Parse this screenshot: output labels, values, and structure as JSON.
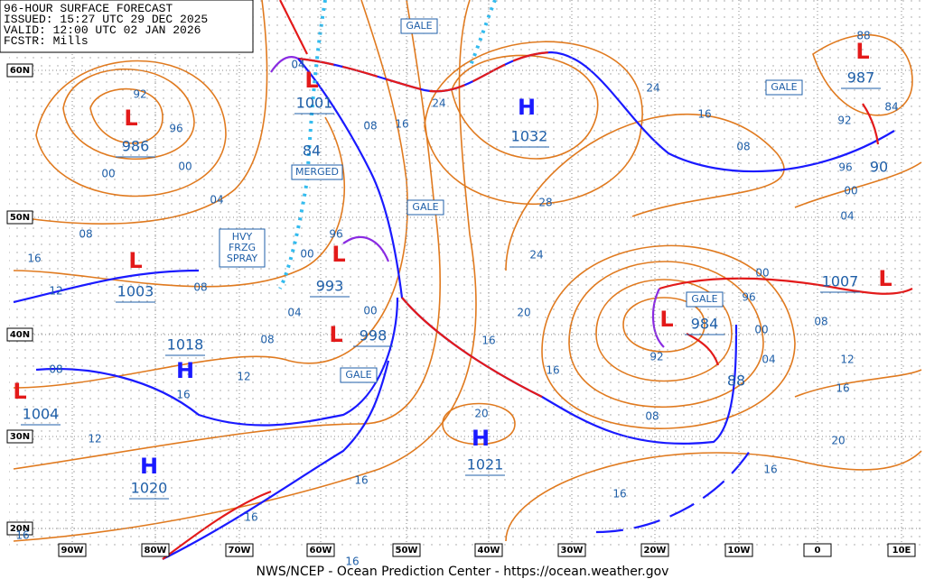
{
  "header": {
    "lines": [
      "96-HOUR SURFACE FORECAST",
      "ISSUED: 15:27 UTC 29 DEC 2025",
      "VALID:  12:00 UTC 02 JAN 2026",
      "FCSTR:  Mills"
    ]
  },
  "centers": [
    {
      "symbol": "L",
      "pressure": "986"
    },
    {
      "symbol": "L",
      "pressure": "1001"
    },
    {
      "symbol": "L",
      "pressure": "1003"
    },
    {
      "symbol": "H",
      "pressure": "1018"
    },
    {
      "symbol": "L",
      "pressure": "1004"
    },
    {
      "symbol": "H",
      "pressure": "1020"
    },
    {
      "symbol": "L",
      "pressure": "993"
    },
    {
      "symbol": "L",
      "pressure": "998"
    },
    {
      "symbol": "H",
      "pressure": "1032"
    },
    {
      "symbol": "H",
      "pressure": "1021"
    },
    {
      "symbol": "L",
      "pressure": "984"
    },
    {
      "symbol": "L",
      "pressure": "1007"
    },
    {
      "symbol": "L",
      "pressure": "987"
    }
  ],
  "isobar_labels": [
    "92",
    "96",
    "00",
    "00",
    "04",
    "08",
    "16",
    "12",
    "08",
    "04",
    "08",
    "12",
    "16",
    "08",
    "12",
    "16",
    "16",
    "16",
    "16",
    "04",
    "08",
    "16",
    "24",
    "24",
    "16",
    "08",
    "28",
    "24",
    "20",
    "16",
    "16",
    "20",
    "16",
    "08",
    "92",
    "96",
    "00",
    "00",
    "04",
    "08",
    "12",
    "16",
    "20",
    "16",
    "92",
    "96",
    "00",
    "04",
    "84",
    "88",
    "96",
    "00",
    "00",
    "84",
    "88",
    "90"
  ],
  "warnings": [
    "GALE",
    "GALE",
    "GALE",
    "GALE",
    "GALE"
  ],
  "annotations": {
    "merged": "MERGED",
    "spray": [
      "HVY",
      "FRZG",
      "SPRAY"
    ]
  },
  "lat_labels": [
    "60N",
    "50N",
    "40N",
    "30N",
    "20N"
  ],
  "lon_labels": [
    "90W",
    "80W",
    "70W",
    "60W",
    "50W",
    "40W",
    "30W",
    "20W",
    "10W",
    "0",
    "10E"
  ],
  "footer": "NWS/NCEP - Ocean Prediction Center - https://ocean.weather.gov"
}
